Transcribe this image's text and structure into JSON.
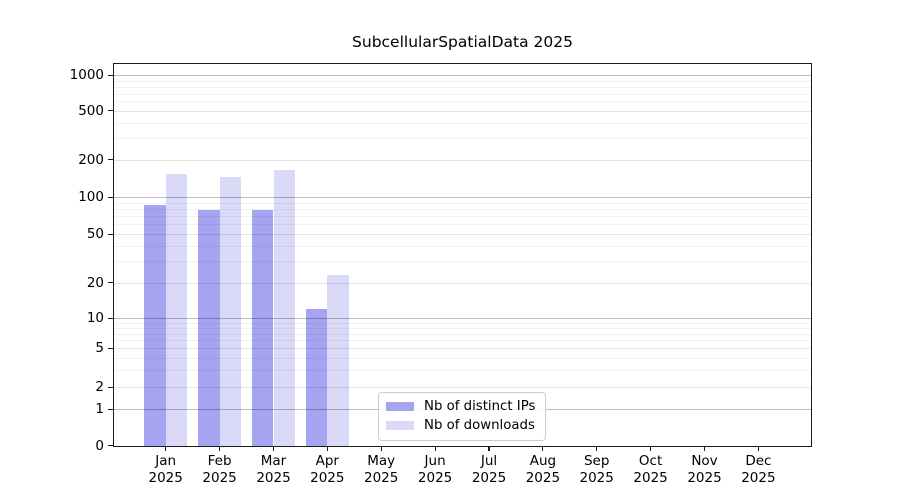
{
  "chart_data": {
    "type": "bar",
    "title": "SubcellularSpatialData 2025",
    "categories": [
      {
        "month": "Jan",
        "year": "2025"
      },
      {
        "month": "Feb",
        "year": "2025"
      },
      {
        "month": "Mar",
        "year": "2025"
      },
      {
        "month": "Apr",
        "year": "2025"
      },
      {
        "month": "May",
        "year": "2025"
      },
      {
        "month": "Jun",
        "year": "2025"
      },
      {
        "month": "Jul",
        "year": "2025"
      },
      {
        "month": "Aug",
        "year": "2025"
      },
      {
        "month": "Sep",
        "year": "2025"
      },
      {
        "month": "Oct",
        "year": "2025"
      },
      {
        "month": "Nov",
        "year": "2025"
      },
      {
        "month": "Dec",
        "year": "2025"
      }
    ],
    "series": [
      {
        "name": "Nb of distinct IPs",
        "color": "#a4a4f0",
        "values": [
          87,
          79,
          79,
          12,
          0,
          0,
          0,
          0,
          0,
          0,
          0,
          0
        ]
      },
      {
        "name": "Nb of downloads",
        "color": "#dadaf8",
        "values": [
          154,
          146,
          164,
          23,
          0,
          0,
          0,
          0,
          0,
          0,
          0,
          0
        ]
      }
    ],
    "yscale": "symlog",
    "ytick_values": [
      0,
      1,
      2,
      5,
      10,
      20,
      50,
      100,
      200,
      500,
      1000
    ],
    "ytick_labels": [
      "0",
      "1",
      "2",
      "5",
      "10",
      "20",
      "50",
      "100",
      "200",
      "500",
      "1000"
    ],
    "xlabel": "",
    "ylabel": "",
    "grid": true,
    "legend_position": "lower center",
    "colors": {
      "bar_distinct_ips": "#a4a4f0",
      "bar_downloads": "#dadaf8",
      "grid_major": "#bdbdbd",
      "grid_minor": "#ededed",
      "axis": "#1a1a1a",
      "background": "#ffffff"
    }
  }
}
